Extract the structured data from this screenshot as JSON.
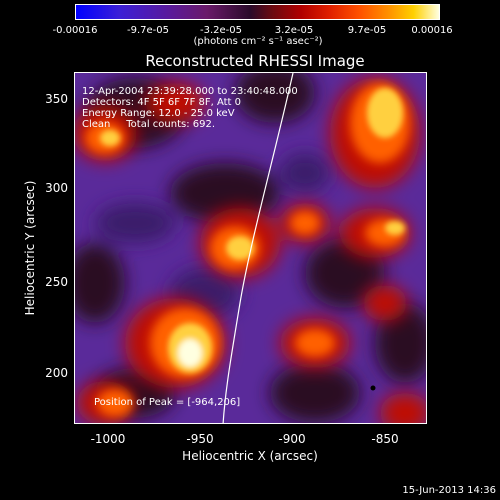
{
  "colorbar": {
    "tick_labels": [
      "-0.00016",
      "-9.7e-05",
      "-3.2e-05",
      "3.2e-05",
      "9.7e-05",
      "0.00016"
    ],
    "unit_label": "(photons cm⁻² s⁻¹ asec⁻²)"
  },
  "plot": {
    "title": "Reconstructed RHESSI Image",
    "info_lines": [
      "12-Apr-2004 23:39:28.000 to 23:40:48.000",
      "Detectors: 4F 5F 6F 7F 8F, Att 0",
      "Energy Range: 12.0 - 25.0 keV",
      "Clean     Total counts: 692."
    ],
    "peak_label": "Position of Peak = [-964,206]",
    "x_axis": {
      "title": "Heliocentric X (arcsec)",
      "ticks": [
        "-1000",
        "-950",
        "-900",
        "-850"
      ]
    },
    "y_axis": {
      "title": "Heliocentric Y (arcsec)",
      "ticks": [
        "350",
        "300",
        "250",
        "200"
      ]
    }
  },
  "footer": {
    "date": "15-Jun-2013 14:36"
  }
}
